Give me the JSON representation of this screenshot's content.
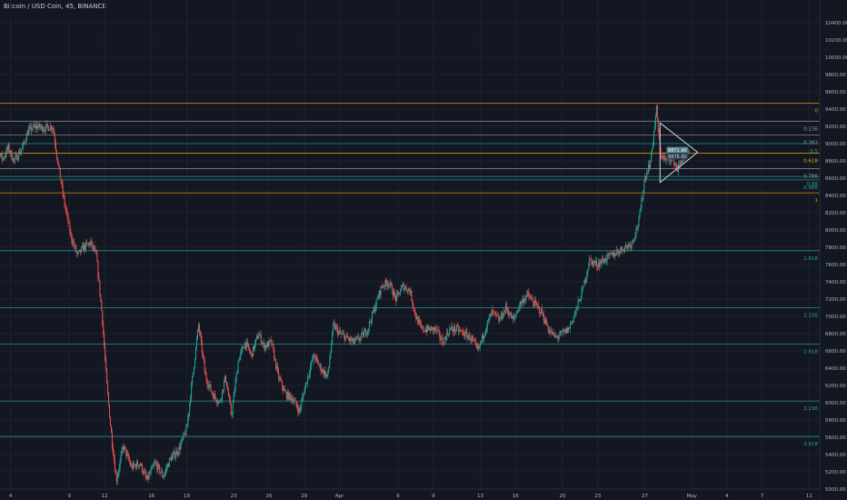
{
  "header": {
    "title": "Bitcoin / USD Coin, 45, BINANCE"
  },
  "colors": {
    "background": "#131722",
    "grid": "#1c2130",
    "axis_text": "#b2b5be",
    "up": "#26a69a",
    "down": "#ef5350",
    "fib_gray": "#9598a1",
    "fib_orange": "#f7a600",
    "fib_teal": "#26a69a",
    "fib_blue": "#2962ff",
    "triangle": "#d1d4dc",
    "price_tag": "#4c7d86"
  },
  "chart_data": {
    "type": "candlestick",
    "title": "Bitcoin / USD Coin, 45, BINANCE",
    "xlabel": "",
    "ylabel": "",
    "ylim": [
      5000,
      10600
    ],
    "y_ticks": [
      "5000.00",
      "5200.00",
      "5400.00",
      "5600.00",
      "5800.00",
      "6000.00",
      "6200.00",
      "6400.00",
      "6600.00",
      "6800.00",
      "7000.00",
      "7200.00",
      "7400.00",
      "7600.00",
      "7800.00",
      "8000.00",
      "8200.00",
      "8400.00",
      "8600.00",
      "8800.00",
      "9000.00",
      "9200.00",
      "9400.00",
      "9600.00",
      "9800.00",
      "10000.00",
      "10200.00",
      "10400.00"
    ],
    "x_ticks": [
      {
        "label": "4",
        "day": 4
      },
      {
        "label": "9",
        "day": 9
      },
      {
        "label": "12",
        "day": 12
      },
      {
        "label": "16",
        "day": 16
      },
      {
        "label": "19",
        "day": 19
      },
      {
        "label": "23",
        "day": 23
      },
      {
        "label": "26",
        "day": 26
      },
      {
        "label": "29",
        "day": 29
      },
      {
        "label": "Apr",
        "day": 32
      },
      {
        "label": "6",
        "day": 37
      },
      {
        "label": "9",
        "day": 40
      },
      {
        "label": "13",
        "day": 44
      },
      {
        "label": "16",
        "day": 47
      },
      {
        "label": "20",
        "day": 51
      },
      {
        "label": "23",
        "day": 54
      },
      {
        "label": "27",
        "day": 58
      },
      {
        "label": "May",
        "day": 62
      },
      {
        "label": "4",
        "day": 65
      },
      {
        "label": "7",
        "day": 68
      },
      {
        "label": "11",
        "day": 72
      }
    ],
    "price_path": [
      [
        2.0,
        8450
      ],
      [
        2.6,
        8700
      ],
      [
        3.0,
        8900
      ],
      [
        3.3,
        8820
      ],
      [
        3.8,
        8950
      ],
      [
        4.3,
        8800
      ],
      [
        5.0,
        8950
      ],
      [
        5.5,
        9150
      ],
      [
        6.2,
        9200
      ],
      [
        6.8,
        9180
      ],
      [
        7.6,
        9200
      ],
      [
        8.0,
        8800
      ],
      [
        8.6,
        8300
      ],
      [
        9.1,
        7950
      ],
      [
        9.7,
        7700
      ],
      [
        10.2,
        7800
      ],
      [
        10.8,
        7850
      ],
      [
        11.3,
        7700
      ],
      [
        11.8,
        7000
      ],
      [
        12.2,
        6200
      ],
      [
        12.6,
        5600
      ],
      [
        13.0,
        5100
      ],
      [
        13.6,
        5500
      ],
      [
        14.3,
        5250
      ],
      [
        15.0,
        5300
      ],
      [
        15.6,
        5100
      ],
      [
        16.3,
        5300
      ],
      [
        17.0,
        5150
      ],
      [
        17.6,
        5350
      ],
      [
        18.3,
        5450
      ],
      [
        19.0,
        5700
      ],
      [
        19.5,
        6300
      ],
      [
        20.0,
        6900
      ],
      [
        20.6,
        6300
      ],
      [
        21.2,
        6100
      ],
      [
        21.8,
        6000
      ],
      [
        22.3,
        6300
      ],
      [
        22.8,
        5850
      ],
      [
        23.4,
        6500
      ],
      [
        24.0,
        6700
      ],
      [
        24.5,
        6550
      ],
      [
        25.1,
        6800
      ],
      [
        25.6,
        6650
      ],
      [
        26.2,
        6700
      ],
      [
        26.8,
        6300
      ],
      [
        27.4,
        6100
      ],
      [
        28.0,
        6050
      ],
      [
        28.6,
        5900
      ],
      [
        29.2,
        6250
      ],
      [
        29.8,
        6550
      ],
      [
        30.4,
        6400
      ],
      [
        31.0,
        6300
      ],
      [
        31.5,
        6900
      ],
      [
        32.0,
        6800
      ],
      [
        32.6,
        6750
      ],
      [
        33.2,
        6700
      ],
      [
        33.8,
        6750
      ],
      [
        34.4,
        6850
      ],
      [
        35.0,
        7100
      ],
      [
        35.6,
        7350
      ],
      [
        36.2,
        7400
      ],
      [
        36.8,
        7200
      ],
      [
        37.4,
        7350
      ],
      [
        38.0,
        7300
      ],
      [
        38.5,
        7000
      ],
      [
        39.0,
        6850
      ],
      [
        39.6,
        6850
      ],
      [
        40.2,
        6850
      ],
      [
        40.8,
        6700
      ],
      [
        41.4,
        6850
      ],
      [
        42.0,
        6850
      ],
      [
        42.6,
        6800
      ],
      [
        43.2,
        6750
      ],
      [
        43.8,
        6600
      ],
      [
        44.4,
        6850
      ],
      [
        45.0,
        7050
      ],
      [
        45.6,
        6950
      ],
      [
        46.2,
        7100
      ],
      [
        46.8,
        6950
      ],
      [
        47.4,
        7150
      ],
      [
        48.0,
        7250
      ],
      [
        48.6,
        7150
      ],
      [
        49.2,
        7050
      ],
      [
        49.8,
        6850
      ],
      [
        50.4,
        6750
      ],
      [
        51.0,
        6800
      ],
      [
        51.5,
        6850
      ],
      [
        52.1,
        7050
      ],
      [
        52.7,
        7300
      ],
      [
        53.3,
        7650
      ],
      [
        53.9,
        7600
      ],
      [
        54.5,
        7650
      ],
      [
        55.1,
        7700
      ],
      [
        55.7,
        7750
      ],
      [
        56.3,
        7800
      ],
      [
        56.9,
        7850
      ],
      [
        57.5,
        8100
      ],
      [
        58.0,
        8600
      ],
      [
        58.5,
        8800
      ],
      [
        59.0,
        9400
      ],
      [
        59.3,
        8900
      ],
      [
        59.8,
        8800
      ],
      [
        60.3,
        8850
      ],
      [
        60.8,
        8700
      ],
      [
        61.3,
        8850
      ],
      [
        61.8,
        8900
      ]
    ],
    "fibonacci": [
      {
        "label": "0",
        "price": 9470,
        "color": "orange"
      },
      {
        "label": "0.236",
        "price": 9260,
        "color": "gray"
      },
      {
        "label": "0.382",
        "price": 9100,
        "color": "gray"
      },
      {
        "label": "0.5",
        "price": 9000,
        "color": "teal"
      },
      {
        "label": "0.618",
        "price": 8890,
        "color": "orange"
      },
      {
        "label": "0.786",
        "price": 8710,
        "color": "gray"
      },
      {
        "label": "0.86",
        "price": 8620,
        "color": "teal"
      },
      {
        "label": "0.886",
        "price": 8580,
        "color": "teal"
      },
      {
        "label": "1",
        "price": 8430,
        "color": "orange"
      },
      {
        "label": "1.618",
        "price": 7760,
        "color": "teal"
      },
      {
        "label": "2.236",
        "price": 7100,
        "color": "teal"
      },
      {
        "label": "2.618",
        "price": 6680,
        "color": "teal"
      },
      {
        "label": "3.236",
        "price": 6020,
        "color": "teal"
      },
      {
        "label": "3.618",
        "price": 5610,
        "color": "teal"
      }
    ],
    "triangle": [
      [
        59.3,
        9240
      ],
      [
        62.5,
        8900
      ],
      [
        59.3,
        8550
      ]
    ],
    "last_price": {
      "labels": [
        "8871.90",
        "8876.80"
      ],
      "price": 8880
    }
  }
}
